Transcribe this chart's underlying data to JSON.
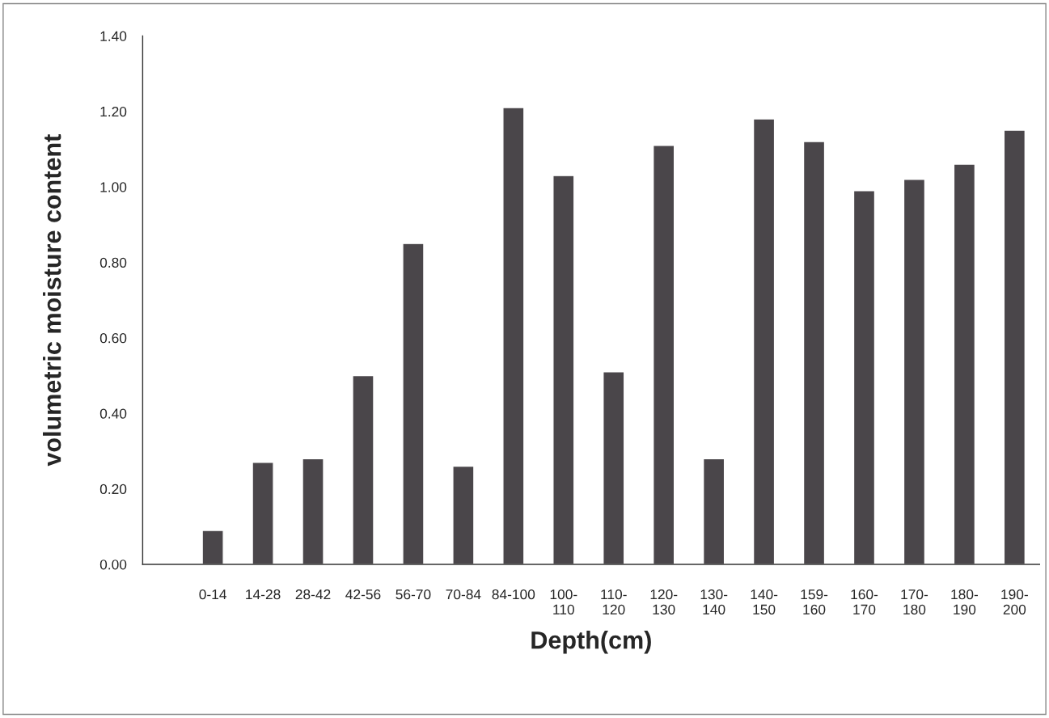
{
  "chart_data": {
    "type": "bar",
    "xlabel": "Depth(cm)",
    "ylabel": "volumetric moisture content",
    "categories": [
      "0-14",
      "14-28",
      "28-42",
      "42-56",
      "56-70",
      "70-84",
      "84-100",
      "100-\n110",
      "110-\n120",
      "120-\n130",
      "130-\n140",
      "140-\n150",
      "159-\n160",
      "160-\n170",
      "170-\n180",
      "180-\n190",
      "190-\n200"
    ],
    "values": [
      0.09,
      0.27,
      0.28,
      0.5,
      0.85,
      0.26,
      1.21,
      1.03,
      0.51,
      1.11,
      0.28,
      1.18,
      1.12,
      0.99,
      1.02,
      1.06,
      1.15
    ],
    "color": "#4a464a",
    "ylim": [
      0,
      1.4
    ],
    "yticks": [
      {
        "value": 0,
        "label": "0.00"
      },
      {
        "value": 0.2,
        "label": "0.20"
      },
      {
        "value": 0.4,
        "label": "0.40"
      },
      {
        "value": 0.6,
        "label": "0.60"
      },
      {
        "value": 0.8,
        "label": "0.80"
      },
      {
        "value": 1.0,
        "label": "1.00"
      },
      {
        "value": 1.2,
        "label": "1.20"
      },
      {
        "value": 1.4,
        "label": "1.40"
      }
    ],
    "grid": false,
    "legend": false
  }
}
